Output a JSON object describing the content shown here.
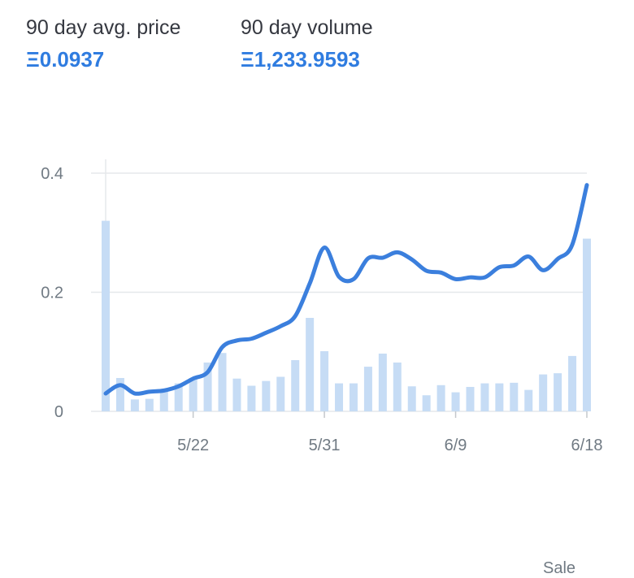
{
  "stats": {
    "avg_price": {
      "label": "90 day avg. price",
      "value": "Ξ0.0937"
    },
    "volume": {
      "label": "90 day volume",
      "value": "Ξ1,233.9593"
    }
  },
  "footer": {
    "partial_label": "Sale"
  },
  "colors": {
    "accent": "#2f7ce0",
    "line": "#3b7fdd",
    "bar": "#c6dcf5",
    "grid": "#e5e8eb",
    "tick_text": "#707a83"
  },
  "chart_data": {
    "type": "line",
    "title": "",
    "xlabel": "",
    "ylabel": "",
    "ylim": [
      0,
      0.4
    ],
    "y_ticks": [
      {
        "value": 0,
        "label": "0"
      },
      {
        "value": 0.2,
        "label": "0.2"
      },
      {
        "value": 0.4,
        "label": "0.4"
      }
    ],
    "x_ticks": [
      {
        "index": 6,
        "label": "5/22"
      },
      {
        "index": 15,
        "label": "5/31"
      },
      {
        "index": 24,
        "label": "6/9"
      },
      {
        "index": 33,
        "label": "6/18"
      }
    ],
    "grid": true,
    "bars": [
      0.32,
      0.056,
      0.02,
      0.021,
      0.035,
      0.047,
      0.055,
      0.082,
      0.098,
      0.055,
      0.043,
      0.051,
      0.058,
      0.086,
      0.157,
      0.101,
      0.047,
      0.047,
      0.075,
      0.097,
      0.082,
      0.042,
      0.027,
      0.044,
      0.032,
      0.041,
      0.047,
      0.047,
      0.048,
      0.036,
      0.062,
      0.064,
      0.093,
      0.29
    ],
    "line": [
      0.03,
      0.044,
      0.03,
      0.033,
      0.035,
      0.042,
      0.055,
      0.066,
      0.108,
      0.119,
      0.122,
      0.132,
      0.143,
      0.16,
      0.215,
      0.275,
      0.226,
      0.222,
      0.257,
      0.258,
      0.267,
      0.255,
      0.236,
      0.233,
      0.222,
      0.225,
      0.225,
      0.242,
      0.245,
      0.26,
      0.237,
      0.256,
      0.28,
      0.38
    ]
  }
}
